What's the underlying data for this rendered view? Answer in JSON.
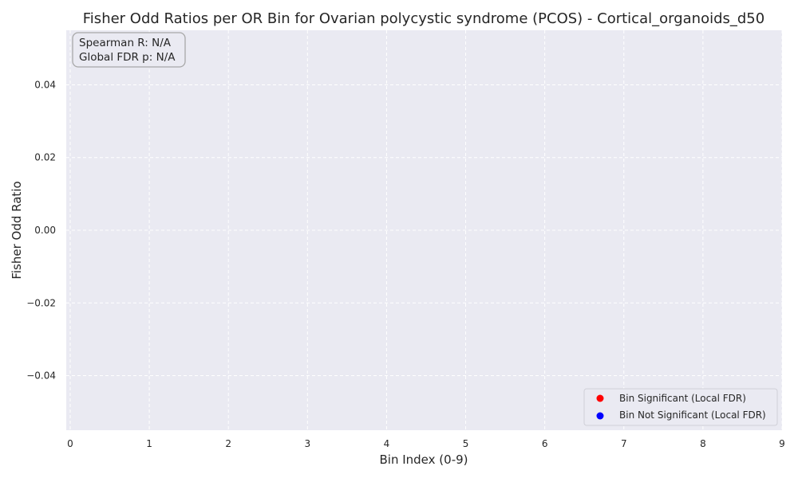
{
  "chart_data": {
    "type": "scatter",
    "title": "Fisher Odd Ratios per OR Bin for Ovarian polycystic syndrome (PCOS) - Cortical_organoids_d50",
    "xlabel": "Bin Index (0-9)",
    "ylabel": "Fisher Odd Ratio",
    "xlim": [
      -0.05,
      9.0
    ],
    "ylim": [
      -0.055,
      0.055
    ],
    "x_ticks": [
      0,
      1,
      2,
      3,
      4,
      5,
      6,
      7,
      8,
      9
    ],
    "x_tick_labels": [
      "0",
      "1",
      "2",
      "3",
      "4",
      "5",
      "6",
      "7",
      "8",
      "9"
    ],
    "y_ticks": [
      0.04,
      0.02,
      0.0,
      -0.02,
      -0.04
    ],
    "y_tick_labels": [
      "0.04",
      "0.02",
      "0.00",
      "−0.02",
      "−0.04"
    ],
    "grid": true,
    "series": [
      {
        "name": "Bin Significant (Local FDR)",
        "color": "#ff0000",
        "points": []
      },
      {
        "name": "Bin Not Significant (Local FDR)",
        "color": "#0000ff",
        "points": []
      }
    ],
    "annotation": {
      "lines": [
        "Spearman R: N/A",
        "Global FDR p: N/A"
      ],
      "placement": "top-left"
    },
    "legend_placement": "bottom-right",
    "colors": {
      "plot_background": "#eaeaf2",
      "grid": "#ffffff"
    }
  }
}
